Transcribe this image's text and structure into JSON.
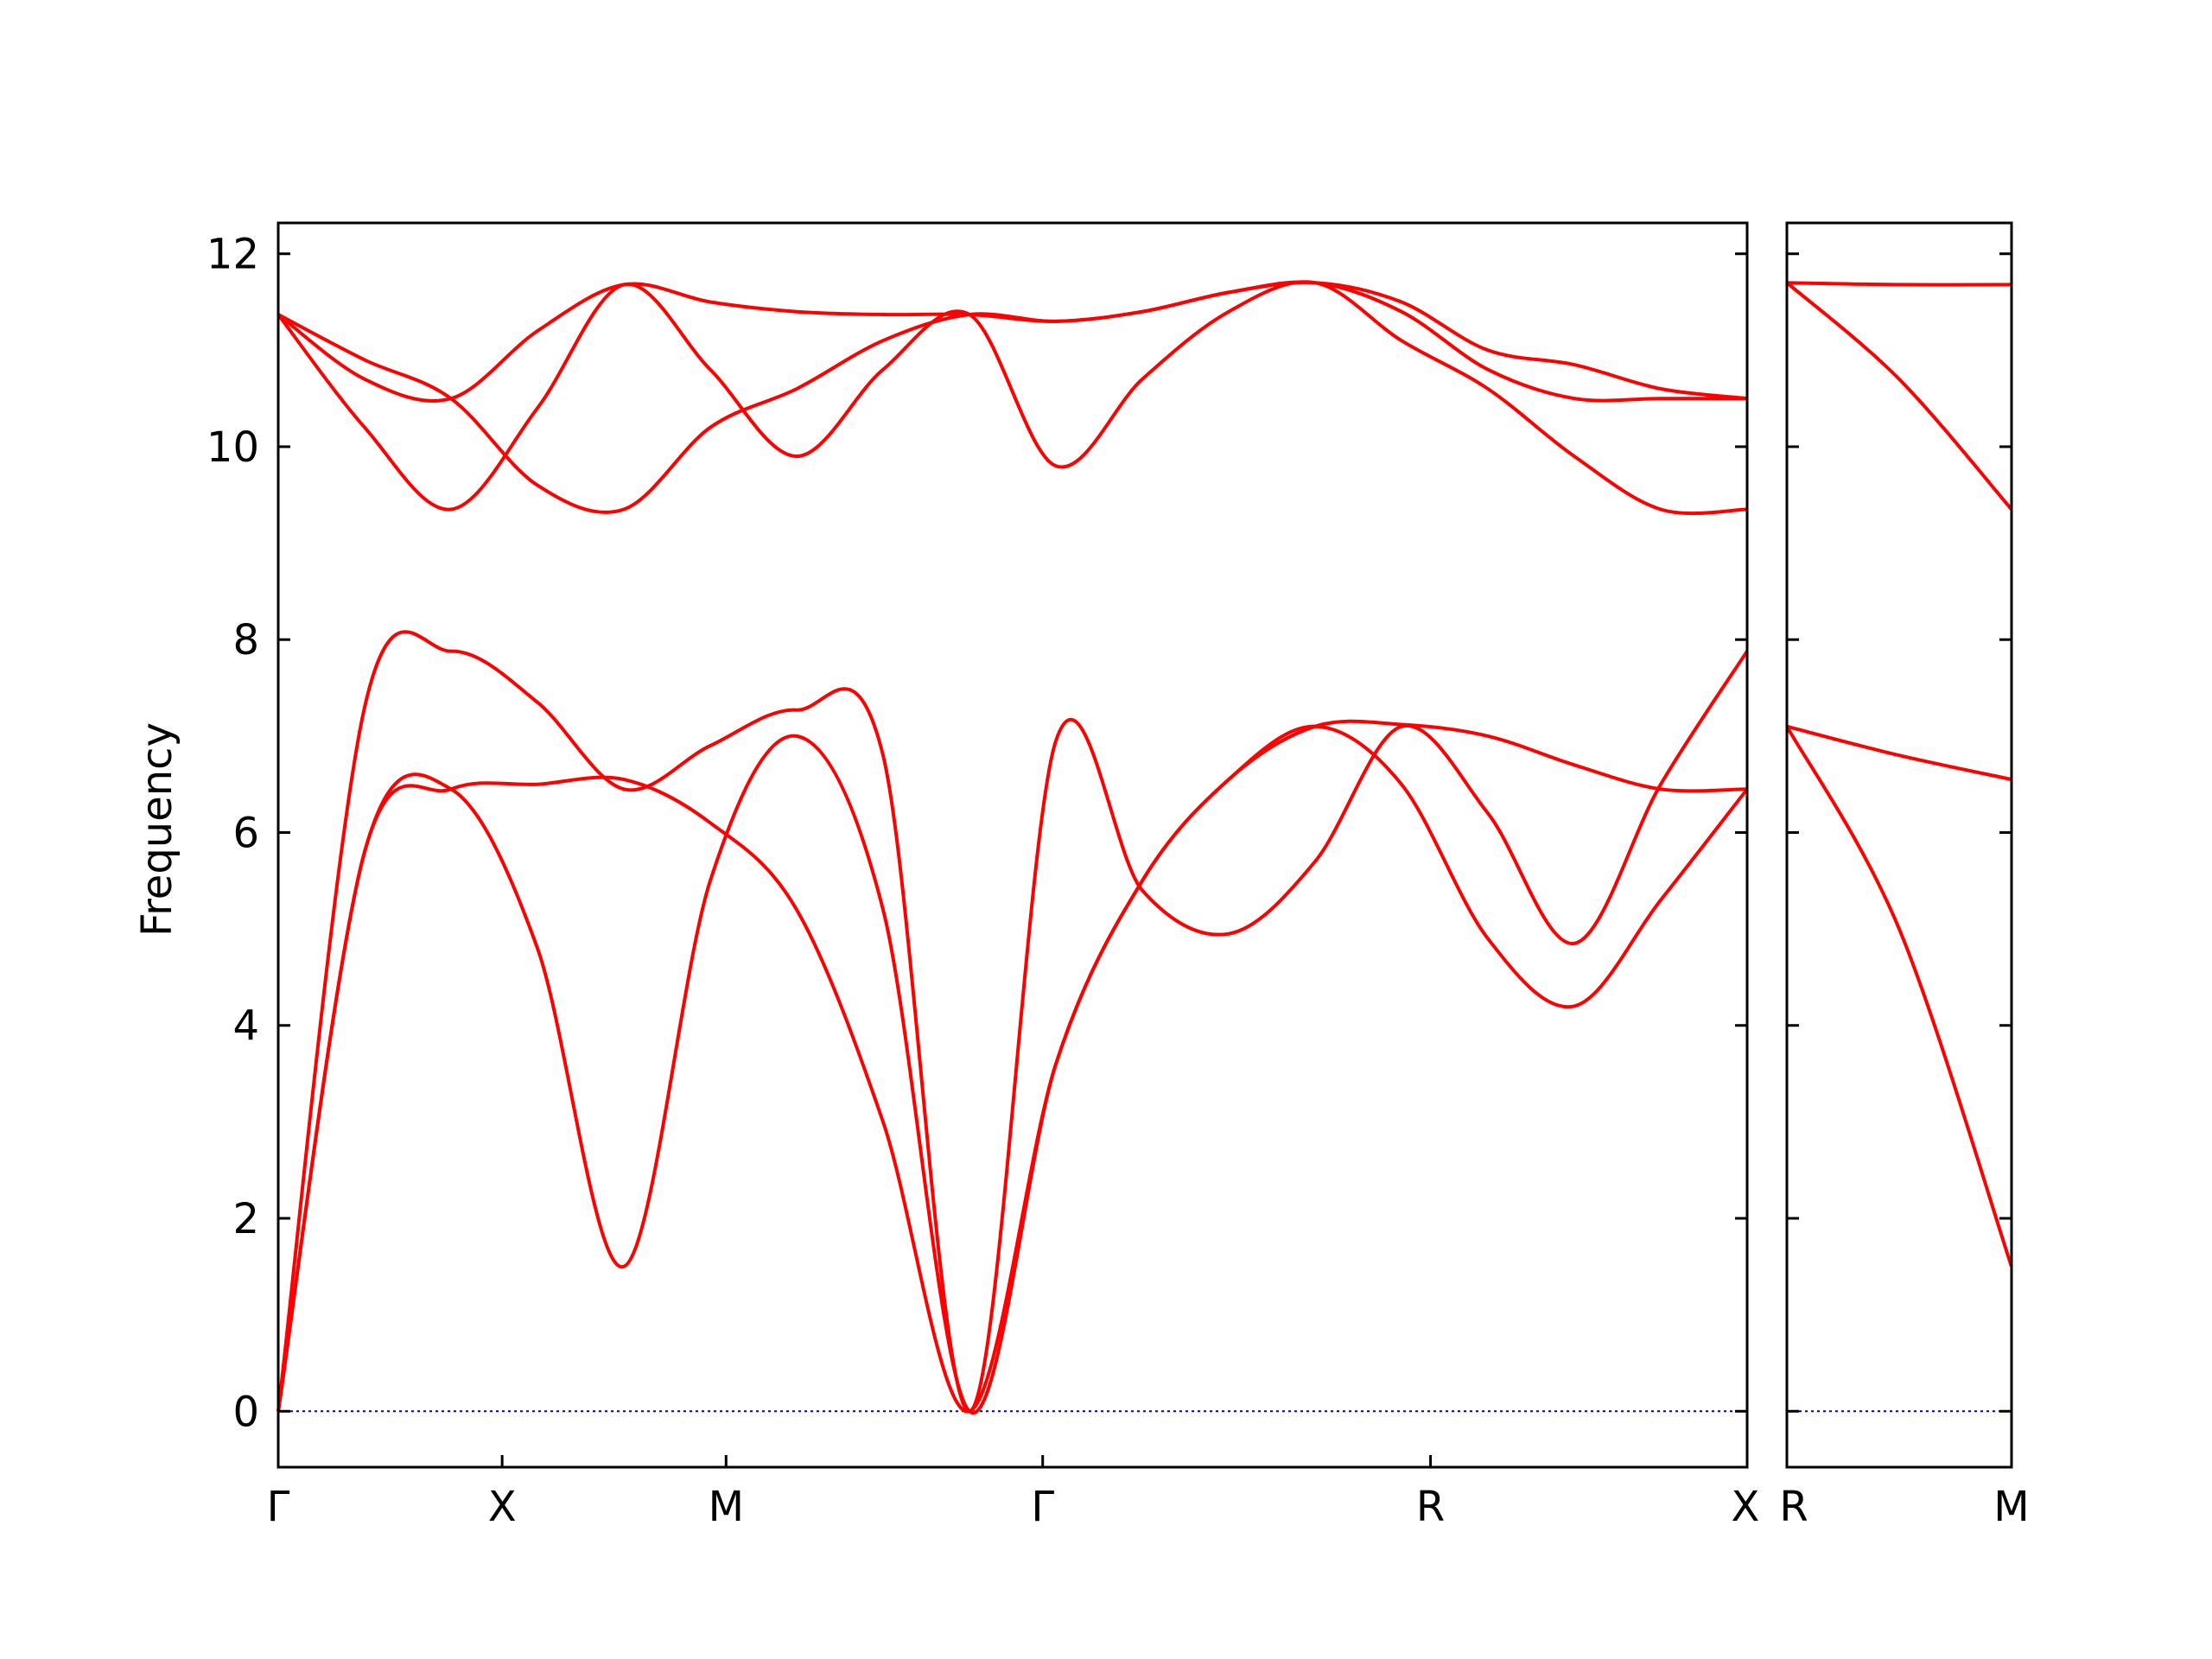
{
  "chart_data": {
    "type": "line",
    "ylabel": "Frequency",
    "ylim": [
      -0.58,
      12.32
    ],
    "yticks": [
      0,
      2,
      4,
      6,
      8,
      10,
      12
    ],
    "grid": false,
    "band_color": "#ff0000",
    "zero_line_color": "#0000aa",
    "panels": [
      {
        "segment_labels": [
          "Γ",
          "X",
          "M",
          "Γ",
          "R",
          "X"
        ],
        "segment_positions": [
          0,
          0.5,
          1.0,
          1.707,
          2.573,
          3.28
        ],
        "xlim": [
          0,
          3.28
        ],
        "bands": [
          [
            0,
            7.3,
            7.88,
            7.35,
            6.45,
            6.9,
            7.27,
            6.8,
            0,
            6.95,
            5.4,
            4.95,
            5.7,
            7.1,
            6.2,
            4.85,
            6.5,
            7.88
          ],
          [
            0,
            5.8,
            6.45,
            4.8,
            1.5,
            5.5,
            7.0,
            5.2,
            0,
            3.6,
            5.5,
            6.55,
            7.1,
            6.5,
            4.9,
            4.2,
            5.3,
            6.45
          ],
          [
            0,
            5.8,
            6.45,
            6.5,
            6.55,
            6.1,
            5.2,
            3.0,
            0,
            3.6,
            5.5,
            6.55,
            7.1,
            7.12,
            7.0,
            6.7,
            6.45,
            6.45
          ],
          [
            11.37,
            10.2,
            9.35,
            10.4,
            11.68,
            10.8,
            9.9,
            10.8,
            11.37,
            9.8,
            10.7,
            11.4,
            11.7,
            11.1,
            10.6,
            9.9,
            9.35,
            9.35
          ],
          [
            11.37,
            10.7,
            10.5,
            11.2,
            11.68,
            11.5,
            11.4,
            11.37,
            11.37,
            11.3,
            11.4,
            11.6,
            11.7,
            11.4,
            10.8,
            10.5,
            10.5,
            10.5
          ],
          [
            11.37,
            10.9,
            10.5,
            9.6,
            9.35,
            10.2,
            10.6,
            11.1,
            11.37,
            11.3,
            11.4,
            11.6,
            11.7,
            11.5,
            11.0,
            10.85,
            10.6,
            10.5
          ]
        ]
      },
      {
        "segment_labels": [
          "R",
          "M"
        ],
        "segment_positions": [
          0,
          0.5
        ],
        "xlim": [
          0,
          0.5
        ],
        "bands": [
          [
            11.7,
            11.68,
            11.68
          ],
          [
            11.7,
            10.7,
            9.35
          ],
          [
            7.1,
            6.8,
            6.55
          ],
          [
            7.1,
            5.0,
            1.5
          ]
        ]
      }
    ]
  }
}
